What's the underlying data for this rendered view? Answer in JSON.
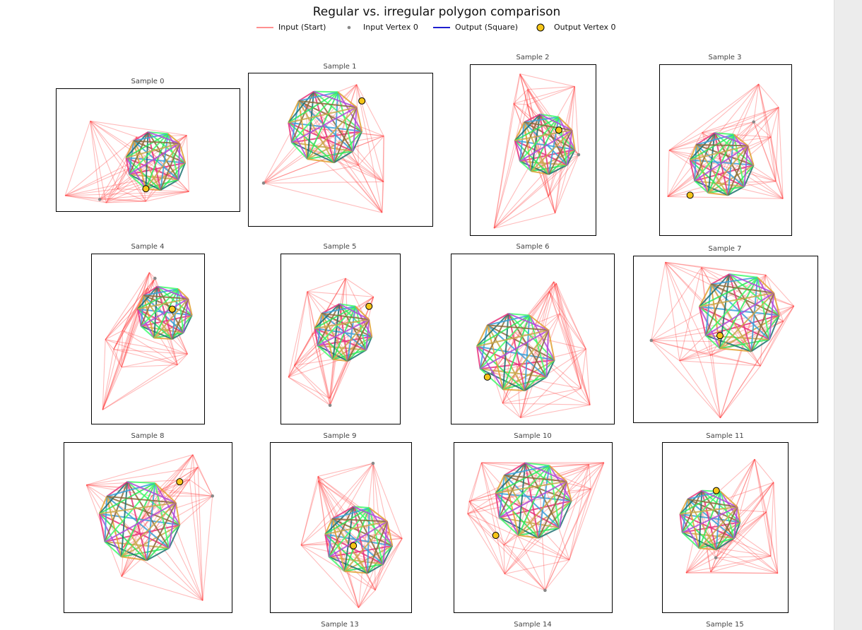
{
  "figure": {
    "title": "Regular vs. irregular polygon comparison"
  },
  "legend": {
    "items": [
      {
        "label": "Input (Start)",
        "kind": "line",
        "color": "#ff6b6b"
      },
      {
        "label": "Input Vertex 0",
        "kind": "dot",
        "color": "#888888"
      },
      {
        "label": "Output (Square)",
        "kind": "line",
        "color": "#1f1fcf"
      },
      {
        "label": "Output Vertex 0",
        "kind": "marker",
        "color": "#f5c518"
      }
    ]
  },
  "chart_data": {
    "type": "scatter",
    "description_free": true,
    "samples": [
      {
        "title": "Sample 0"
      },
      {
        "title": "Sample 1"
      },
      {
        "title": "Sample 2"
      },
      {
        "title": "Sample 3"
      },
      {
        "title": "Sample 4"
      },
      {
        "title": "Sample 5"
      },
      {
        "title": "Sample 6"
      },
      {
        "title": "Sample 7"
      },
      {
        "title": "Sample 8"
      },
      {
        "title": "Sample 9"
      },
      {
        "title": "Sample 10"
      },
      {
        "title": "Sample 11"
      },
      {
        "title": "Sample 13"
      },
      {
        "title": "Sample 14"
      },
      {
        "title": "Sample 15"
      }
    ],
    "colors": {
      "input_edges": "#ff3b3b",
      "input_vertex": "#888888",
      "output_vertex": "#f5c518",
      "output_palette": [
        "#1a6e6e",
        "#2ee85a",
        "#c8a84a",
        "#e8327a",
        "#3aa0d8",
        "#8a6a3a",
        "#3dfc6a",
        "#b04ad8",
        "#e0a030"
      ]
    }
  }
}
